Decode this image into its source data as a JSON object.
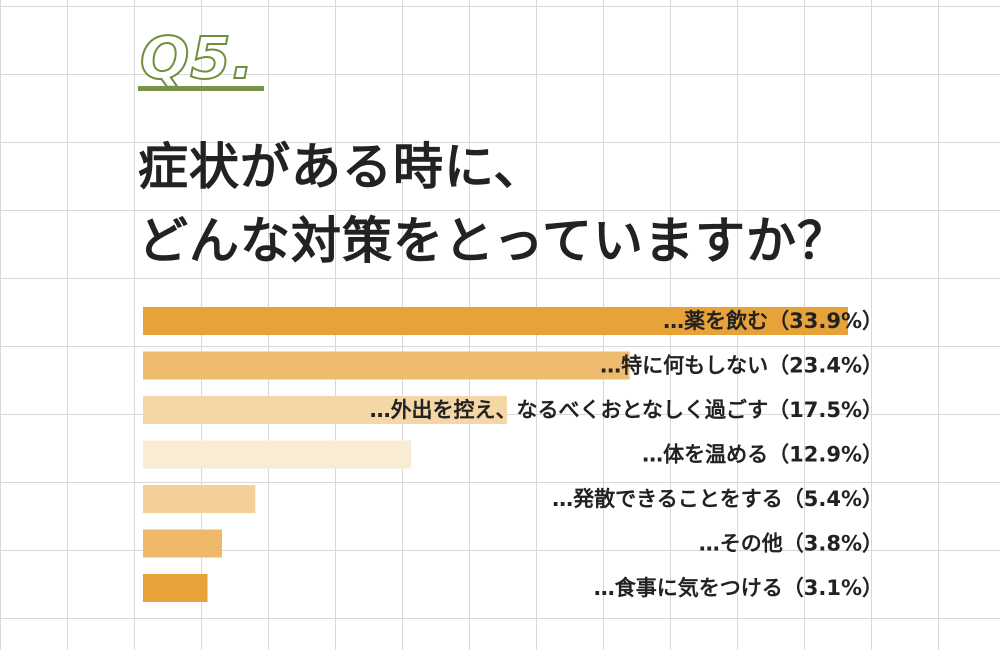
{
  "question_label": "Q5.",
  "title_lines": [
    "症状がある時に、",
    "どんな対策をとっていますか？"
  ],
  "colors": {
    "grid": "#d8d8d8",
    "underline": "#77944a",
    "q_outline": "#6f8f3d",
    "text": "#222222"
  },
  "chart_data": {
    "type": "bar",
    "orientation": "horizontal",
    "title": "症状がある時に、どんな対策をとっていますか？",
    "xlabel": "",
    "ylabel": "",
    "xlim": [
      0,
      40
    ],
    "grid": false,
    "categories": [
      "…薬を飲む（33.9%）",
      "…特に何もしない（23.4%）",
      "…外出を控え、なるべくおとなしく過ごす（17.5%）",
      "…体を温める（12.9%）",
      "…発散できることをする（5.4%）",
      "…その他（3.8%）",
      "…食事に気をつける（3.1%）"
    ],
    "values": [
      33.9,
      23.4,
      17.5,
      12.9,
      5.4,
      3.8,
      3.1
    ],
    "colors": [
      "#e8a23a",
      "#efbb6e",
      "#f5d6a6",
      "#faebd4",
      "#f4cf99",
      "#efb96a",
      "#e8a23a"
    ]
  }
}
